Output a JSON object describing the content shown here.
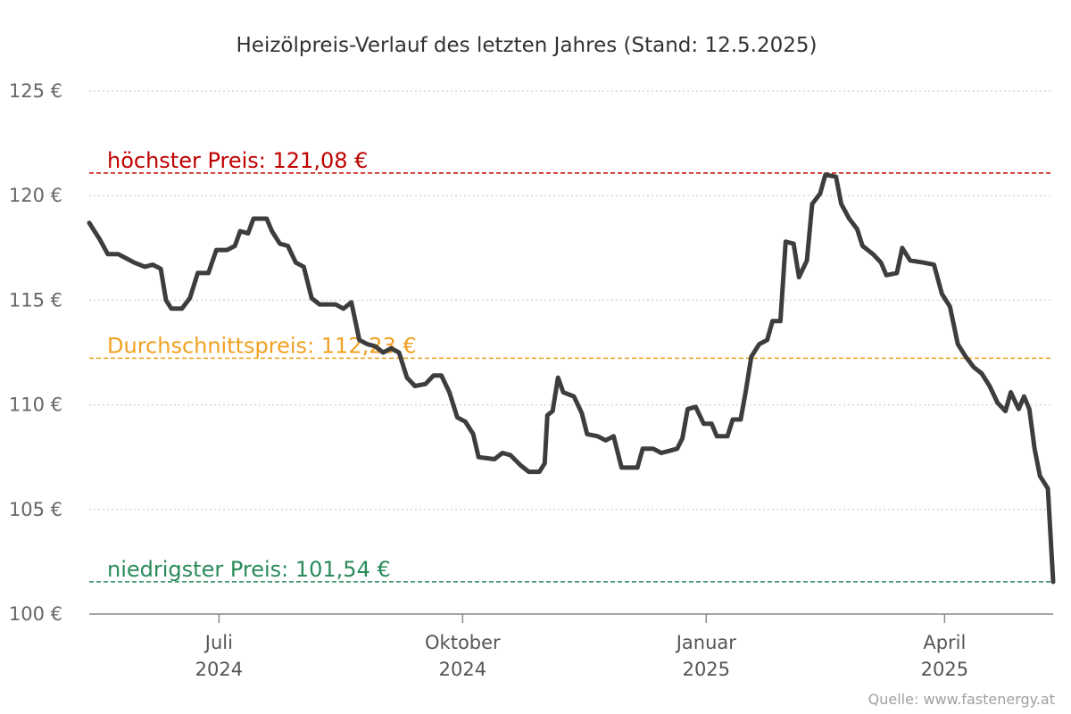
{
  "chart_data": {
    "type": "line",
    "title": "Heizölpreis-Verlauf des letzten Jahres (Stand: 12.5.2025)",
    "source": "Quelle: www.fastenergy.at",
    "xlabel": "",
    "ylabel": "",
    "ylim": [
      100,
      125
    ],
    "xlim": [
      "2024-05-13",
      "2025-05-12"
    ],
    "grid": "horizontal dotted",
    "y_ticks": [
      "100 €",
      "105 €",
      "110 €",
      "115 €",
      "120 €",
      "125 €"
    ],
    "y_tick_values": [
      100,
      105,
      110,
      115,
      120,
      125
    ],
    "x_ticks": [
      {
        "line1": "Juli",
        "line2": "2024",
        "date": "2024-07-01"
      },
      {
        "line1": "Oktober",
        "line2": "2024",
        "date": "2024-10-01"
      },
      {
        "line1": "Januar",
        "line2": "2025",
        "date": "2025-01-01"
      },
      {
        "line1": "April",
        "line2": "2025",
        "date": "2025-04-01"
      }
    ],
    "reference_lines": [
      {
        "name": "höchster Preis",
        "label": "höchster Preis: 121,08 €",
        "value": 121.08,
        "color": "#c00000"
      },
      {
        "name": "Durchschnittspreis",
        "label": "Durchschnittspreis: 112,23 €",
        "value": 112.23,
        "color": "#f0a020"
      },
      {
        "name": "niedrigster Preis",
        "label": "niedrigster Preis: 101,54 €",
        "value": 101.54,
        "color": "#2a8a5a"
      }
    ],
    "series": [
      {
        "color": "#3d3d3d",
        "points": [
          [
            "2024-05-13",
            118.7
          ],
          [
            "2024-05-15",
            118.3
          ],
          [
            "2024-05-17",
            117.9
          ],
          [
            "2024-05-20",
            117.2
          ],
          [
            "2024-05-24",
            117.2
          ],
          [
            "2024-05-27",
            117.0
          ],
          [
            "2024-05-30",
            116.8
          ],
          [
            "2024-06-03",
            116.6
          ],
          [
            "2024-06-06",
            116.7
          ],
          [
            "2024-06-09",
            116.5
          ],
          [
            "2024-06-11",
            115.0
          ],
          [
            "2024-06-13",
            114.6
          ],
          [
            "2024-06-17",
            114.6
          ],
          [
            "2024-06-20",
            115.1
          ],
          [
            "2024-06-23",
            116.3
          ],
          [
            "2024-06-27",
            116.3
          ],
          [
            "2024-06-30",
            117.4
          ],
          [
            "2024-07-04",
            117.4
          ],
          [
            "2024-07-07",
            117.6
          ],
          [
            "2024-07-09",
            118.3
          ],
          [
            "2024-07-12",
            118.2
          ],
          [
            "2024-07-14",
            118.9
          ],
          [
            "2024-07-19",
            118.9
          ],
          [
            "2024-07-21",
            118.3
          ],
          [
            "2024-07-24",
            117.7
          ],
          [
            "2024-07-27",
            117.6
          ],
          [
            "2024-07-30",
            116.8
          ],
          [
            "2024-08-02",
            116.6
          ],
          [
            "2024-08-05",
            115.1
          ],
          [
            "2024-08-08",
            114.8
          ],
          [
            "2024-08-14",
            114.8
          ],
          [
            "2024-08-17",
            114.6
          ],
          [
            "2024-08-20",
            114.9
          ],
          [
            "2024-08-23",
            113.1
          ],
          [
            "2024-08-26",
            112.9
          ],
          [
            "2024-08-29",
            112.8
          ],
          [
            "2024-09-01",
            112.5
          ],
          [
            "2024-09-04",
            112.7
          ],
          [
            "2024-09-07",
            112.5
          ],
          [
            "2024-09-10",
            111.3
          ],
          [
            "2024-09-13",
            110.9
          ],
          [
            "2024-09-17",
            111.0
          ],
          [
            "2024-09-20",
            111.4
          ],
          [
            "2024-09-23",
            111.4
          ],
          [
            "2024-09-26",
            110.6
          ],
          [
            "2024-09-29",
            109.4
          ],
          [
            "2024-10-02",
            109.2
          ],
          [
            "2024-10-05",
            108.6
          ],
          [
            "2024-10-07",
            107.5
          ],
          [
            "2024-10-13",
            107.4
          ],
          [
            "2024-10-16",
            107.7
          ],
          [
            "2024-10-19",
            107.6
          ],
          [
            "2024-10-23",
            107.1
          ],
          [
            "2024-10-26",
            106.8
          ],
          [
            "2024-10-30",
            106.8
          ],
          [
            "2024-11-01",
            107.2
          ],
          [
            "2024-11-02",
            109.5
          ],
          [
            "2024-11-04",
            109.7
          ],
          [
            "2024-11-06",
            111.3
          ],
          [
            "2024-11-08",
            110.6
          ],
          [
            "2024-11-12",
            110.4
          ],
          [
            "2024-11-15",
            109.6
          ],
          [
            "2024-11-17",
            108.6
          ],
          [
            "2024-11-21",
            108.5
          ],
          [
            "2024-11-24",
            108.3
          ],
          [
            "2024-11-27",
            108.5
          ],
          [
            "2024-11-30",
            107.0
          ],
          [
            "2024-12-06",
            107.0
          ],
          [
            "2024-12-08",
            107.9
          ],
          [
            "2024-12-12",
            107.9
          ],
          [
            "2024-12-15",
            107.7
          ],
          [
            "2024-12-18",
            107.8
          ],
          [
            "2024-12-21",
            107.9
          ],
          [
            "2024-12-23",
            108.4
          ],
          [
            "2024-12-25",
            109.8
          ],
          [
            "2024-12-28",
            109.9
          ],
          [
            "2024-12-31",
            109.1
          ],
          [
            "2025-01-03",
            109.1
          ],
          [
            "2025-01-05",
            108.5
          ],
          [
            "2025-01-09",
            108.5
          ],
          [
            "2025-01-11",
            109.3
          ],
          [
            "2025-01-14",
            109.3
          ],
          [
            "2025-01-16",
            110.7
          ],
          [
            "2025-01-18",
            112.3
          ],
          [
            "2025-01-21",
            112.9
          ],
          [
            "2025-01-24",
            113.1
          ],
          [
            "2025-01-26",
            114.0
          ],
          [
            "2025-01-29",
            114.0
          ],
          [
            "2025-01-31",
            117.8
          ],
          [
            "2025-02-03",
            117.7
          ],
          [
            "2025-02-05",
            116.1
          ],
          [
            "2025-02-08",
            116.9
          ],
          [
            "2025-02-10",
            119.6
          ],
          [
            "2025-02-13",
            120.1
          ],
          [
            "2025-02-15",
            121.0
          ],
          [
            "2025-02-19",
            120.9
          ],
          [
            "2025-02-21",
            119.6
          ],
          [
            "2025-02-24",
            118.9
          ],
          [
            "2025-02-27",
            118.4
          ],
          [
            "2025-03-01",
            117.6
          ],
          [
            "2025-03-05",
            117.2
          ],
          [
            "2025-03-08",
            116.8
          ],
          [
            "2025-03-10",
            116.2
          ],
          [
            "2025-03-14",
            116.3
          ],
          [
            "2025-03-16",
            117.5
          ],
          [
            "2025-03-19",
            116.9
          ],
          [
            "2025-03-24",
            116.8
          ],
          [
            "2025-03-28",
            116.7
          ],
          [
            "2025-03-31",
            115.3
          ],
          [
            "2025-04-03",
            114.7
          ],
          [
            "2025-04-06",
            112.9
          ],
          [
            "2025-04-09",
            112.3
          ],
          [
            "2025-04-12",
            111.8
          ],
          [
            "2025-04-15",
            111.5
          ],
          [
            "2025-04-18",
            110.9
          ],
          [
            "2025-04-21",
            110.1
          ],
          [
            "2025-04-24",
            109.7
          ],
          [
            "2025-04-26",
            110.6
          ],
          [
            "2025-04-29",
            109.8
          ],
          [
            "2025-05-01",
            110.4
          ],
          [
            "2025-05-03",
            109.8
          ],
          [
            "2025-05-05",
            107.9
          ],
          [
            "2025-05-07",
            106.6
          ],
          [
            "2025-05-10",
            106.0
          ],
          [
            "2025-05-12",
            101.54
          ]
        ]
      }
    ]
  }
}
